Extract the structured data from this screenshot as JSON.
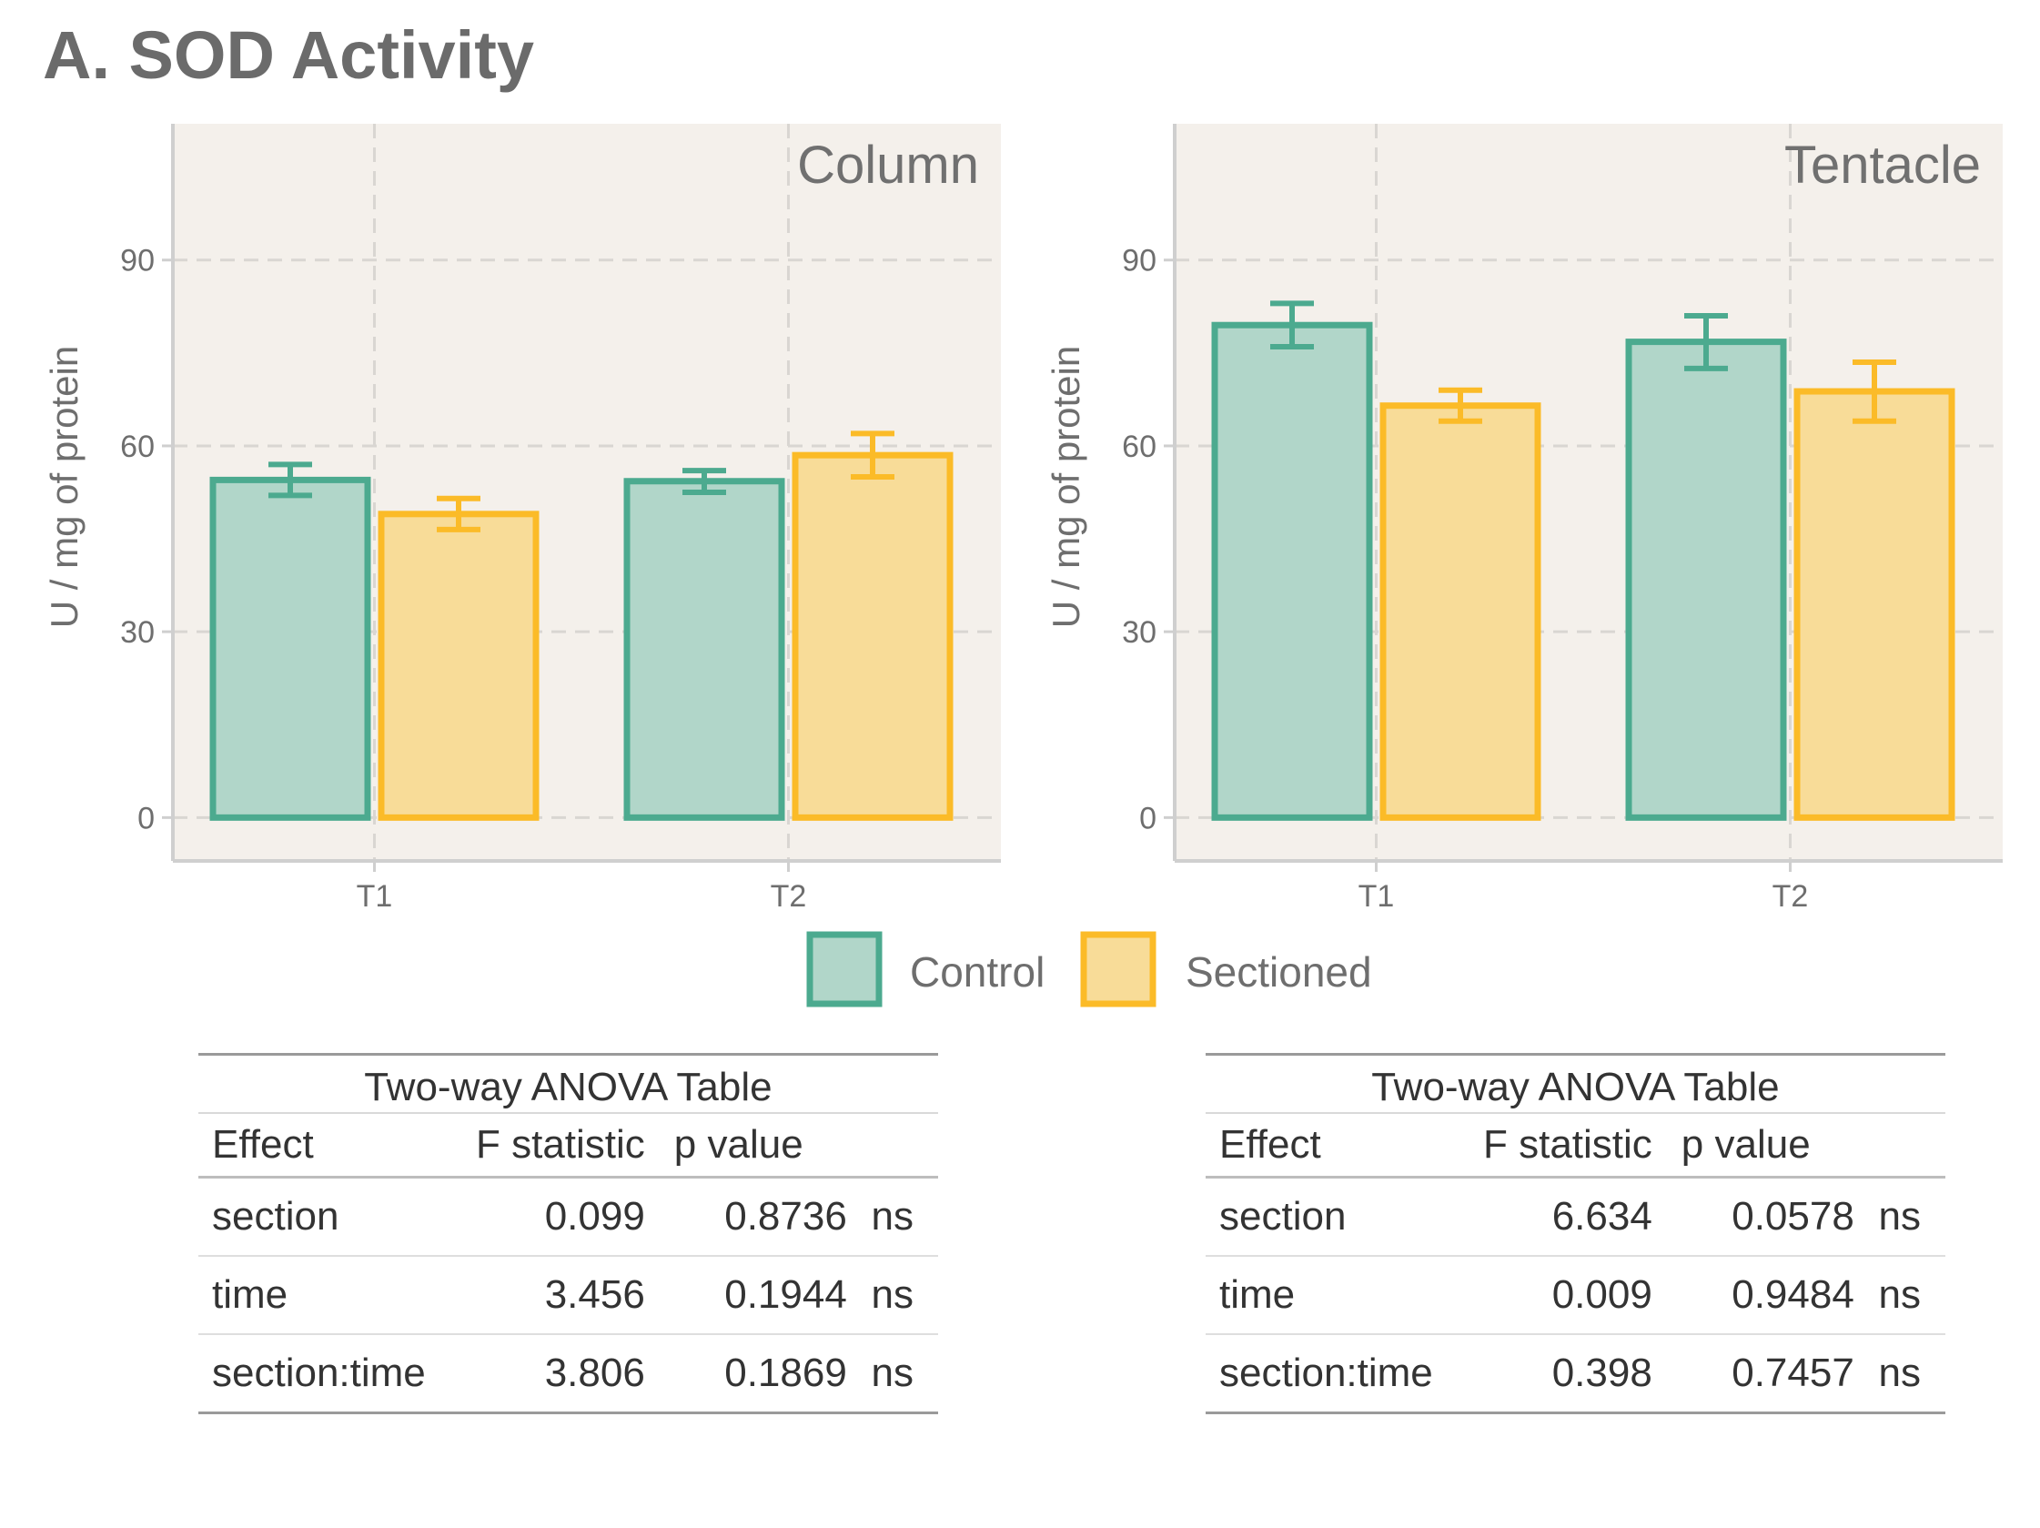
{
  "title": "A. SOD Activity",
  "colors": {
    "panel_bg": "#f4f0eb",
    "grid": "#d9d6d2",
    "axis_line": "#cfcfcf",
    "tick_text": "#6e6e6e",
    "control_fill": "#b1d6c9",
    "control_stroke": "#4caa8f",
    "sectioned_fill": "#f8dc98",
    "sectioned_stroke": "#fbbb28"
  },
  "chart_data": [
    {
      "type": "bar",
      "panel_label": "Column",
      "ylabel": "U / mg  of protein",
      "categories": [
        "T1",
        "T2"
      ],
      "ylim": [
        -7,
        112
      ],
      "yticks": [
        0,
        30,
        60,
        90
      ],
      "grid": true,
      "legend_placement": "bottom",
      "series": [
        {
          "name": "Control",
          "values": [
            54.5,
            54.3
          ],
          "error_low": [
            52.0,
            52.5
          ],
          "error_high": [
            57.0,
            56.0
          ]
        },
        {
          "name": "Sectioned",
          "values": [
            49.0,
            58.5
          ],
          "error_low": [
            46.5,
            55.0
          ],
          "error_high": [
            51.5,
            62.0
          ]
        }
      ]
    },
    {
      "type": "bar",
      "panel_label": "Tentacle",
      "ylabel": "U / mg  of protein",
      "categories": [
        "T1",
        "T2"
      ],
      "ylim": [
        -7,
        112
      ],
      "yticks": [
        0,
        30,
        60,
        90
      ],
      "grid": true,
      "legend_placement": "bottom",
      "series": [
        {
          "name": "Control",
          "values": [
            79.5,
            76.8
          ],
          "error_low": [
            76.0,
            72.5
          ],
          "error_high": [
            83.0,
            81.0
          ]
        },
        {
          "name": "Sectioned",
          "values": [
            66.5,
            68.8
          ],
          "error_low": [
            64.0,
            64.0
          ],
          "error_high": [
            69.0,
            73.5
          ]
        }
      ]
    }
  ],
  "legend": [
    {
      "label": "Control"
    },
    {
      "label": "Sectioned"
    }
  ],
  "tables": [
    {
      "caption": "Two-way ANOVA Table",
      "headers": {
        "effect": "Effect",
        "f": "F statistic",
        "p": "p value",
        "sig": ""
      },
      "rows": [
        {
          "effect": "section",
          "f": "0.099",
          "p": "0.8736",
          "sig": "ns"
        },
        {
          "effect": "time",
          "f": "3.456",
          "p": "0.1944",
          "sig": "ns"
        },
        {
          "effect": "section:time",
          "f": "3.806",
          "p": "0.1869",
          "sig": "ns"
        }
      ]
    },
    {
      "caption": "Two-way ANOVA Table",
      "headers": {
        "effect": "Effect",
        "f": "F statistic",
        "p": "p value",
        "sig": ""
      },
      "rows": [
        {
          "effect": "section",
          "f": "6.634",
          "p": "0.0578",
          "sig": "ns"
        },
        {
          "effect": "time",
          "f": "0.009",
          "p": "0.9484",
          "sig": "ns"
        },
        {
          "effect": "section:time",
          "f": "0.398",
          "p": "0.7457",
          "sig": "ns"
        }
      ]
    }
  ]
}
